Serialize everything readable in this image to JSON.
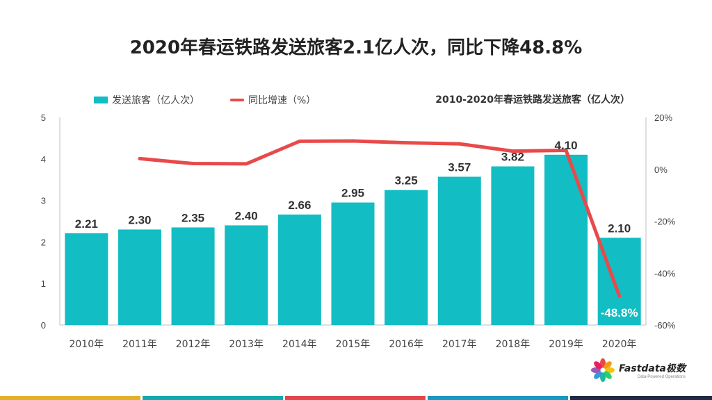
{
  "title": "2020年春运铁路发送旅客2.1亿人次，同比下降48.8%",
  "subtitle": "2010-2020年春运铁路发送旅客（亿人次）",
  "colors": {
    "bar": "#12BDC3",
    "line": "#E84A4A",
    "axis": "#BFBFBF",
    "footer": [
      "#E2B12A",
      "#13A9AE",
      "#E2474C",
      "#1999C0",
      "#1F2A44"
    ]
  },
  "logo": {
    "name": "Fastdata极数",
    "tagline": "Data-Powered Operations"
  },
  "chart_data": {
    "type": "bar",
    "categories": [
      "2010年",
      "2011年",
      "2012年",
      "2013年",
      "2014年",
      "2015年",
      "2016年",
      "2017年",
      "2018年",
      "2019年",
      "2020年"
    ],
    "series": [
      {
        "name": "发送旅客（亿人次）",
        "type": "bar",
        "axis": "left",
        "values": [
          2.21,
          2.3,
          2.35,
          2.4,
          2.66,
          2.95,
          3.25,
          3.57,
          3.82,
          4.1,
          2.1
        ],
        "labels": [
          "2.21",
          "2.30",
          "2.35",
          "2.40",
          "2.66",
          "2.95",
          "3.25",
          "3.57",
          "3.82",
          "4.10",
          "2.10"
        ]
      },
      {
        "name": "同比增速（%）",
        "type": "line",
        "axis": "right",
        "values": [
          null,
          4.1,
          2.2,
          2.1,
          10.8,
          10.9,
          10.2,
          9.8,
          7.0,
          7.3,
          -48.8
        ],
        "labels": [
          "",
          "",
          "",
          "",
          "",
          "",
          "",
          "",
          "",
          "",
          "-48.8%"
        ]
      }
    ],
    "y_left": {
      "min": 0,
      "max": 5,
      "ticks": [
        "0",
        "1",
        "2",
        "3",
        "4",
        "5"
      ]
    },
    "y_right": {
      "min": -60,
      "max": 20,
      "ticks": [
        "-60%",
        "-40%",
        "-20%",
        "0%",
        "20%"
      ]
    },
    "legend_position": "top-left",
    "grid": false
  }
}
